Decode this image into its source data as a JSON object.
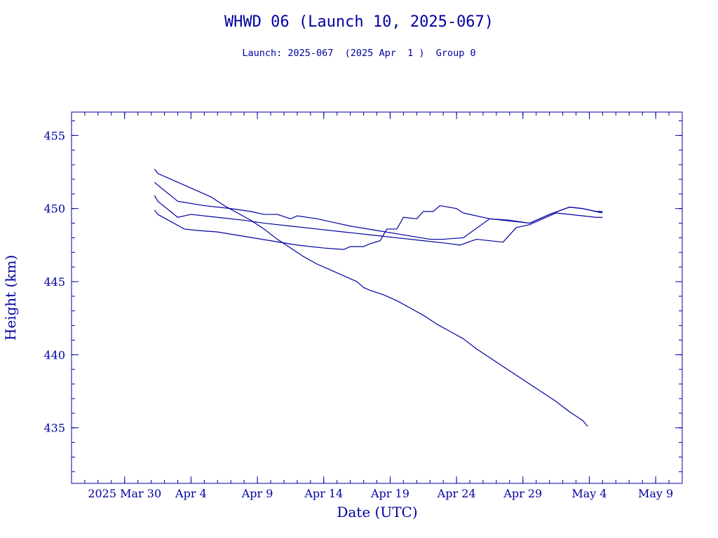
{
  "colors": {
    "ink": "#0000a0",
    "background": "#ffffff"
  },
  "chart_data": {
    "type": "line",
    "title": "WHWD 06 (Launch 10, 2025-067)",
    "subtitle": "Launch: 2025-067  (2025 Apr  1 )  Group 0",
    "xlabel": "Date (UTC)",
    "ylabel": "Height (km)",
    "x_type": "date",
    "xlim": [
      "2025-03-26",
      "2025-05-11"
    ],
    "ylim": [
      431.2,
      456.6
    ],
    "x_ticks": [
      {
        "label": "2025 Mar 30",
        "date": "2025-03-30"
      },
      {
        "label": "Apr  4",
        "date": "2025-04-04"
      },
      {
        "label": "Apr  9",
        "date": "2025-04-09"
      },
      {
        "label": "Apr 14",
        "date": "2025-04-14"
      },
      {
        "label": "Apr 19",
        "date": "2025-04-19"
      },
      {
        "label": "Apr 24",
        "date": "2025-04-24"
      },
      {
        "label": "Apr 29",
        "date": "2025-04-29"
      },
      {
        "label": "May  4",
        "date": "2025-05-04"
      },
      {
        "label": "May  9",
        "date": "2025-05-09"
      }
    ],
    "y_ticks": [
      435,
      440,
      445,
      450,
      455
    ],
    "grid": false,
    "series": [
      {
        "points": [
          [
            "2025-04-01T06:00",
            452.7
          ],
          [
            "2025-04-01T12:00",
            452.4
          ],
          [
            "2025-04-02T12:00",
            452.0
          ],
          [
            "2025-04-03T12:00",
            451.6
          ],
          [
            "2025-04-04T12:00",
            451.2
          ],
          [
            "2025-04-05T12:00",
            450.8
          ],
          [
            "2025-04-06T12:00",
            450.2
          ],
          [
            "2025-04-07T12:00",
            449.7
          ],
          [
            "2025-04-08T12:00",
            449.2
          ],
          [
            "2025-04-09T12:00",
            448.6
          ],
          [
            "2025-04-10T12:00",
            447.9
          ],
          [
            "2025-04-11T12:00",
            447.3
          ],
          [
            "2025-04-12T12:00",
            446.7
          ],
          [
            "2025-04-13T12:00",
            446.2
          ],
          [
            "2025-04-14T12:00",
            445.8
          ],
          [
            "2025-04-15T12:00",
            445.4
          ],
          [
            "2025-04-16T12:00",
            445.0
          ],
          [
            "2025-04-17T00:00",
            444.6
          ],
          [
            "2025-04-17T12:00",
            444.4
          ],
          [
            "2025-04-18T12:00",
            444.1
          ],
          [
            "2025-04-19T12:00",
            443.7
          ],
          [
            "2025-04-20T12:00",
            443.2
          ],
          [
            "2025-04-21T12:00",
            442.7
          ],
          [
            "2025-04-22T12:00",
            442.1
          ],
          [
            "2025-04-23T12:00",
            441.6
          ],
          [
            "2025-04-24T12:00",
            441.1
          ],
          [
            "2025-04-25T12:00",
            440.4
          ],
          [
            "2025-04-26T12:00",
            439.8
          ],
          [
            "2025-04-27T12:00",
            439.2
          ],
          [
            "2025-04-28T12:00",
            438.6
          ],
          [
            "2025-04-29T12:00",
            438.0
          ],
          [
            "2025-04-30T12:00",
            437.4
          ],
          [
            "2025-05-01T12:00",
            436.8
          ],
          [
            "2025-05-02T12:00",
            436.1
          ],
          [
            "2025-05-03T12:00",
            435.5
          ],
          [
            "2025-05-03T21:00",
            435.1
          ]
        ]
      },
      {
        "points": [
          [
            "2025-04-01T06:00",
            451.8
          ],
          [
            "2025-04-01T12:00",
            451.6
          ],
          [
            "2025-04-03T00:00",
            450.5
          ],
          [
            "2025-04-05T00:00",
            450.2
          ],
          [
            "2025-04-07T00:00",
            450.0
          ],
          [
            "2025-04-08T12:00",
            449.8
          ],
          [
            "2025-04-09T12:00",
            449.6
          ],
          [
            "2025-04-10T12:00",
            449.6
          ],
          [
            "2025-04-11T12:00",
            449.3
          ],
          [
            "2025-04-12T00:00",
            449.5
          ],
          [
            "2025-04-13T12:00",
            449.3
          ],
          [
            "2025-04-15T00:00",
            449.0
          ],
          [
            "2025-04-16T00:00",
            448.8
          ],
          [
            "2025-04-18T00:00",
            448.5
          ],
          [
            "2025-04-20T00:00",
            448.2
          ],
          [
            "2025-04-22T00:00",
            447.9
          ],
          [
            "2025-04-23T00:00",
            447.9
          ],
          [
            "2025-04-24T12:00",
            448.0
          ],
          [
            "2025-04-26T12:00",
            449.3
          ],
          [
            "2025-04-28T00:00",
            449.2
          ],
          [
            "2025-04-29T12:00",
            449.0
          ],
          [
            "2025-05-01T00:00",
            449.6
          ],
          [
            "2025-05-02T12:00",
            450.1
          ],
          [
            "2025-05-03T12:00",
            450.0
          ],
          [
            "2025-05-04T12:00",
            449.8
          ],
          [
            "2025-05-05T00:00",
            449.8
          ]
        ]
      },
      {
        "points": [
          [
            "2025-04-01T06:00",
            450.9
          ],
          [
            "2025-04-01T12:00",
            450.5
          ],
          [
            "2025-04-03T00:00",
            449.4
          ],
          [
            "2025-04-04T00:00",
            449.6
          ],
          [
            "2025-04-06T00:00",
            449.4
          ],
          [
            "2025-04-08T00:00",
            449.2
          ],
          [
            "2025-04-09T12:00",
            449.0
          ],
          [
            "2025-04-11T12:00",
            448.8
          ],
          [
            "2025-04-13T12:00",
            448.6
          ],
          [
            "2025-04-15T12:00",
            448.4
          ],
          [
            "2025-04-17T12:00",
            448.2
          ],
          [
            "2025-04-19T12:00",
            448.0
          ],
          [
            "2025-04-21T12:00",
            447.8
          ],
          [
            "2025-04-23T12:00",
            447.6
          ],
          [
            "2025-04-24T06:00",
            447.5
          ],
          [
            "2025-04-25T12:00",
            447.9
          ],
          [
            "2025-04-27T12:00",
            447.7
          ],
          [
            "2025-04-28T12:00",
            448.7
          ],
          [
            "2025-04-29T12:00",
            448.9
          ],
          [
            "2025-05-01T12:00",
            449.7
          ],
          [
            "2025-05-03T12:00",
            449.5
          ],
          [
            "2025-05-04T12:00",
            449.4
          ],
          [
            "2025-05-05T00:00",
            449.4
          ]
        ]
      },
      {
        "points": [
          [
            "2025-04-01T06:00",
            449.9
          ],
          [
            "2025-04-01T12:00",
            449.6
          ],
          [
            "2025-04-03T12:00",
            448.6
          ],
          [
            "2025-04-04T12:00",
            448.5
          ],
          [
            "2025-04-06T00:00",
            448.4
          ],
          [
            "2025-04-08T00:00",
            448.1
          ],
          [
            "2025-04-10T00:00",
            447.8
          ],
          [
            "2025-04-12T00:00",
            447.5
          ],
          [
            "2025-04-14T00:00",
            447.3
          ],
          [
            "2025-04-15T12:00",
            447.2
          ],
          [
            "2025-04-16T00:00",
            447.4
          ],
          [
            "2025-04-17T00:00",
            447.4
          ],
          [
            "2025-04-17T12:00",
            447.6
          ],
          [
            "2025-04-18T06:00",
            447.8
          ],
          [
            "2025-04-18T18:00",
            448.6
          ],
          [
            "2025-04-19T12:00",
            448.6
          ],
          [
            "2025-04-20T00:00",
            449.4
          ],
          [
            "2025-04-21T00:00",
            449.3
          ],
          [
            "2025-04-21T12:00",
            449.8
          ],
          [
            "2025-04-22T06:00",
            449.8
          ],
          [
            "2025-04-22T18:00",
            450.2
          ],
          [
            "2025-04-24T00:00",
            450.0
          ],
          [
            "2025-04-24T12:00",
            449.7
          ],
          [
            "2025-04-26T12:00",
            449.3
          ],
          [
            "2025-04-29T12:00",
            449.0
          ],
          [
            "2025-05-01T00:00",
            449.6
          ],
          [
            "2025-05-02T12:00",
            450.1
          ],
          [
            "2025-05-03T12:00",
            450.0
          ],
          [
            "2025-05-04T12:00",
            449.8
          ],
          [
            "2025-05-05T00:00",
            449.7
          ]
        ]
      }
    ]
  }
}
